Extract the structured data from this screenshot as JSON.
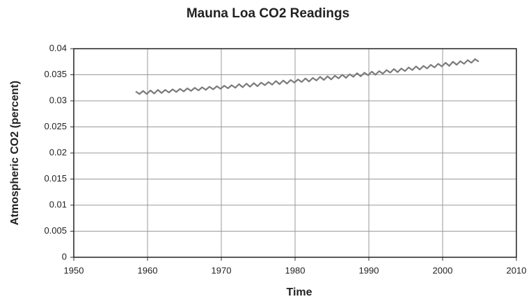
{
  "chart_data": {
    "type": "line",
    "title": "Mauna Loa CO2 Readings",
    "xlabel": "Time",
    "ylabel": "Atmospheric CO2  (percent)",
    "color": "#7a7a7a",
    "grid": true,
    "xlim": [
      1950,
      2010
    ],
    "xticks": [
      1950,
      1960,
      1970,
      1980,
      1990,
      2000,
      2010
    ],
    "ylim": [
      0,
      0.04
    ],
    "yticks": [
      0,
      0.005,
      0.01,
      0.015,
      0.02,
      0.025,
      0.03,
      0.035,
      0.04
    ],
    "x": [
      1958.4,
      1958.9,
      1959.4,
      1959.9,
      1960.4,
      1960.9,
      1961.4,
      1961.9,
      1962.4,
      1962.9,
      1963.4,
      1963.9,
      1964.4,
      1964.9,
      1965.4,
      1965.9,
      1966.4,
      1966.9,
      1967.4,
      1967.9,
      1968.4,
      1968.9,
      1969.4,
      1969.9,
      1970.4,
      1970.9,
      1971.4,
      1971.9,
      1972.4,
      1972.9,
      1973.4,
      1973.9,
      1974.4,
      1974.9,
      1975.4,
      1975.9,
      1976.4,
      1976.9,
      1977.4,
      1977.9,
      1978.4,
      1978.9,
      1979.4,
      1979.9,
      1980.4,
      1980.9,
      1981.4,
      1981.9,
      1982.4,
      1982.9,
      1983.4,
      1983.9,
      1984.4,
      1984.9,
      1985.4,
      1985.9,
      1986.4,
      1986.9,
      1987.4,
      1987.9,
      1988.4,
      1988.9,
      1989.4,
      1989.9,
      1990.4,
      1990.9,
      1991.4,
      1991.9,
      1992.4,
      1992.9,
      1993.4,
      1993.9,
      1994.4,
      1994.9,
      1995.4,
      1995.9,
      1996.4,
      1996.9,
      1997.4,
      1997.9,
      1998.4,
      1998.9,
      1999.4,
      1999.9,
      2000.4,
      2000.9,
      2001.4,
      2001.9,
      2002.4,
      2002.9,
      2003.4,
      2003.9,
      2004.4,
      2004.9
    ],
    "values": [
      0.0318,
      0.0313,
      0.0319,
      0.0313,
      0.032,
      0.0314,
      0.0321,
      0.0315,
      0.0321,
      0.0316,
      0.0322,
      0.0317,
      0.0323,
      0.0318,
      0.0324,
      0.0319,
      0.0325,
      0.032,
      0.0326,
      0.0321,
      0.0327,
      0.0322,
      0.0328,
      0.0323,
      0.0329,
      0.0324,
      0.033,
      0.0325,
      0.0332,
      0.0326,
      0.0333,
      0.0327,
      0.0334,
      0.0328,
      0.0335,
      0.033,
      0.0336,
      0.0331,
      0.0338,
      0.0332,
      0.0339,
      0.0333,
      0.034,
      0.0335,
      0.0341,
      0.0336,
      0.0343,
      0.0337,
      0.0344,
      0.0339,
      0.0346,
      0.034,
      0.0347,
      0.0341,
      0.0348,
      0.0343,
      0.035,
      0.0344,
      0.0351,
      0.0346,
      0.0353,
      0.0347,
      0.0354,
      0.0349,
      0.0356,
      0.035,
      0.0357,
      0.0352,
      0.0359,
      0.0354,
      0.0361,
      0.0355,
      0.0362,
      0.0357,
      0.0364,
      0.0359,
      0.0366,
      0.036,
      0.0367,
      0.0362,
      0.0369,
      0.0364,
      0.0371,
      0.0366,
      0.0373,
      0.0367,
      0.0375,
      0.0369,
      0.0376,
      0.0371,
      0.0378,
      0.0373,
      0.038,
      0.0375
    ]
  }
}
